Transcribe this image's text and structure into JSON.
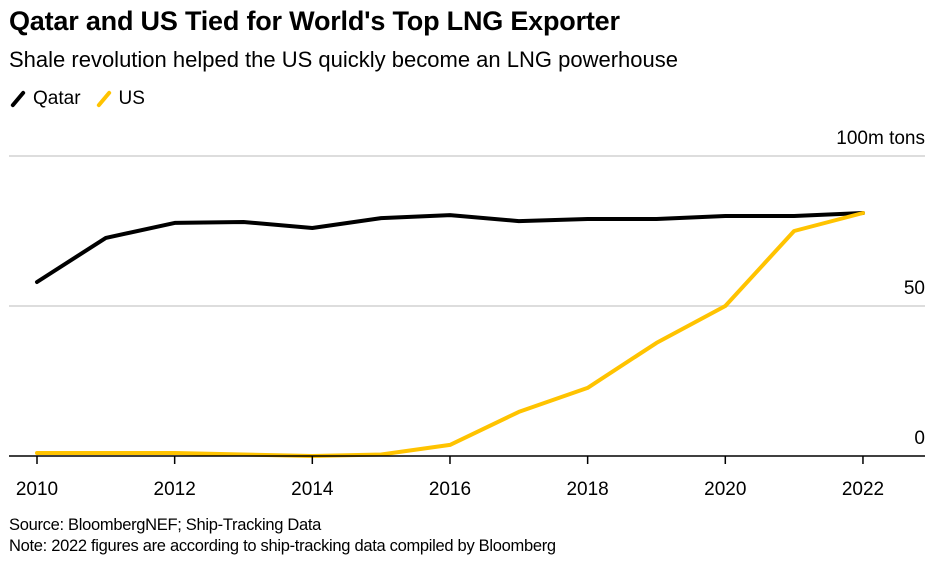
{
  "header": {
    "title": "Qatar and US Tied for World's Top LNG Exporter",
    "subtitle": "Shale revolution helped the US quickly become an LNG powerhouse"
  },
  "footer": {
    "source": "Source: BloombergNEF; Ship-Tracking Data",
    "note": "Note: 2022 figures are according to ship-tracking data compiled by Bloomberg"
  },
  "chart_data": {
    "type": "line",
    "title": "Qatar and US Tied for World's Top LNG Exporter",
    "subtitle": "Shale revolution helped the US quickly become an LNG powerhouse",
    "xlabel": "",
    "ylabel": "100m tons",
    "x": [
      2010,
      2011,
      2012,
      2013,
      2014,
      2015,
      2016,
      2017,
      2018,
      2019,
      2020,
      2021,
      2022
    ],
    "xlim": [
      2010,
      2023
    ],
    "ylim": [
      0,
      100
    ],
    "x_ticks": [
      "2010",
      "2012",
      "2014",
      "2016",
      "2018",
      "2020",
      "2022"
    ],
    "x_tick_values": [
      2010,
      2012,
      2014,
      2016,
      2018,
      2020,
      2022
    ],
    "y_ticks": [
      {
        "value": 100,
        "label": "100m tons"
      },
      {
        "value": 50,
        "label": "50"
      },
      {
        "value": 0,
        "label": "0"
      }
    ],
    "grid": true,
    "legend_position": "top-left",
    "series": [
      {
        "name": "Qatar",
        "color": "#000000",
        "values": [
          58,
          72.7,
          77.7,
          78,
          76,
          79.3,
          80.3,
          78.3,
          79,
          79,
          80,
          80,
          81
        ]
      },
      {
        "name": "US",
        "color": "#ffc300",
        "values": [
          1,
          1,
          1,
          0.5,
          0,
          0.5,
          3.7,
          14.7,
          22.7,
          37.7,
          50,
          75,
          81
        ]
      }
    ]
  }
}
